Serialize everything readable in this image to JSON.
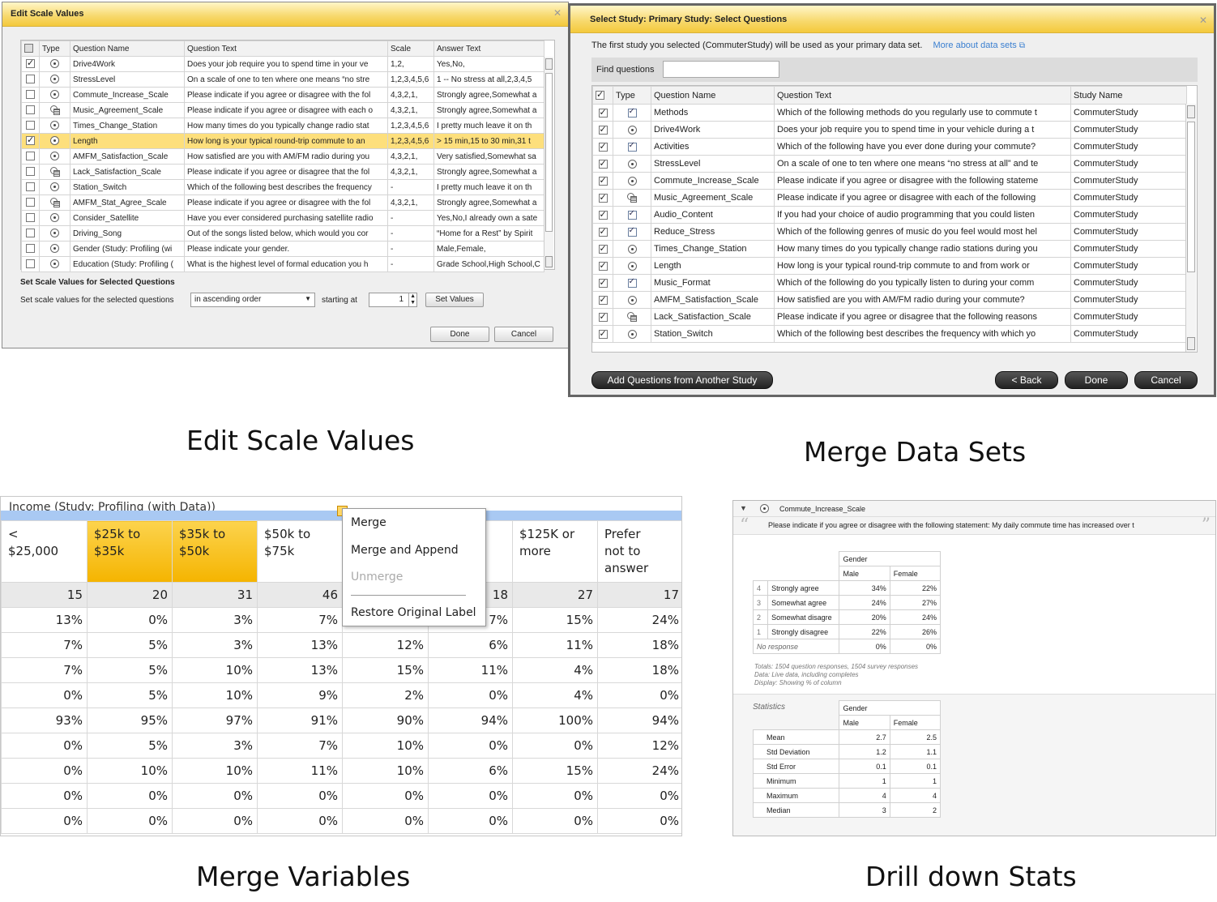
{
  "captions": {
    "edit_scale": "Edit Scale Values",
    "merge_data": "Merge Data Sets",
    "merge_vars": "Merge Variables",
    "drill_down": "Drill down Stats"
  },
  "edit_scale_dialog": {
    "title": "Edit Scale Values",
    "close": "✕",
    "columns": [
      "Type",
      "Question Name",
      "Question Text",
      "Scale",
      "Answer Text"
    ],
    "rows": [
      {
        "checked": true,
        "type": "radio",
        "name": "Drive4Work",
        "text": "Does your job require you to spend time in your ve",
        "scale": "1,2,",
        "answer": "Yes,No,"
      },
      {
        "checked": false,
        "type": "radio",
        "name": "StressLevel",
        "text": "On a scale of one to ten where one means “no stre",
        "scale": "1,2,3,4,5,6",
        "answer": "1 -- No stress at all,2,3,4,5"
      },
      {
        "checked": false,
        "type": "radio",
        "name": "Commute_Increase_Scale",
        "text": "Please indicate if you agree or disagree with the fol",
        "scale": "4,3,2,1,",
        "answer": "Strongly agree,Somewhat a"
      },
      {
        "checked": false,
        "type": "grid",
        "name": "Music_Agreement_Scale",
        "text": "Please indicate if you agree or disagree with each o",
        "scale": "4,3,2,1,",
        "answer": "Strongly agree,Somewhat a"
      },
      {
        "checked": false,
        "type": "radio",
        "name": "Times_Change_Station",
        "text": "How many times do you typically change radio stat",
        "scale": "1,2,3,4,5,6",
        "answer": "I pretty much leave it on th"
      },
      {
        "checked": true,
        "type": "radio",
        "name": "Length",
        "text": "How long is your typical round-trip commute to an",
        "scale": "1,2,3,4,5,6",
        "answer": "> 15 min,15 to 30 min,31 t",
        "selected": true
      },
      {
        "checked": false,
        "type": "radio",
        "name": "AMFM_Satisfaction_Scale",
        "text": "How satisfied are you with AM/FM radio during you",
        "scale": "4,3,2,1,",
        "answer": "Very satisfied,Somewhat sa"
      },
      {
        "checked": false,
        "type": "grid",
        "name": "Lack_Satisfaction_Scale",
        "text": "Please indicate if you agree or disagree that the fol",
        "scale": "4,3,2,1,",
        "answer": "Strongly agree,Somewhat a"
      },
      {
        "checked": false,
        "type": "radio",
        "name": "Station_Switch",
        "text": "Which of the following best describes the frequency",
        "scale": "-",
        "answer": "I pretty much leave it on th"
      },
      {
        "checked": false,
        "type": "grid",
        "name": "AMFM_Stat_Agree_Scale",
        "text": "Please indicate if you agree or disagree with the fol",
        "scale": "4,3,2,1,",
        "answer": "Strongly agree,Somewhat a"
      },
      {
        "checked": false,
        "type": "radio",
        "name": "Consider_Satellite",
        "text": "Have you ever considered purchasing satellite radio",
        "scale": "-",
        "answer": "Yes,No,I already own a sate"
      },
      {
        "checked": false,
        "type": "radio",
        "name": "Driving_Song",
        "text": "Out of the songs listed below, which would you cor",
        "scale": "-",
        "answer": "“Home for a Rest” by Spirit"
      },
      {
        "checked": false,
        "type": "radio",
        "name": "Gender (Study: Profiling (wi",
        "text": "Please indicate your gender.",
        "scale": "-",
        "answer": "Male,Female,"
      },
      {
        "checked": false,
        "type": "radio",
        "name": "Education (Study: Profiling (",
        "text": "What is the highest level of formal education you h",
        "scale": "-",
        "answer": "Grade School,High School,C"
      }
    ],
    "section_title": "Set Scale Values for Selected Questions",
    "set_label": "Set scale values for the selected questions",
    "order_value": "in ascending order",
    "starting_label": "starting at",
    "starting_value": "1",
    "set_button": "Set Values",
    "done": "Done",
    "cancel": "Cancel"
  },
  "select_study_dialog": {
    "title": "Select Study: Primary Study: Select Questions",
    "close": "✕",
    "intro": "The first study you selected  (CommuterStudy)  will be used as your primary data set.",
    "more_link": "More about data sets",
    "find_label": "Find questions",
    "find_value": "",
    "columns": [
      "Type",
      "Question Name",
      "Question Text",
      "Study Name"
    ],
    "rows": [
      {
        "type": "check",
        "name": "Methods",
        "text": "Which of the following methods do you regularly use to commute t",
        "study": "CommuterStudy"
      },
      {
        "type": "radio",
        "name": "Drive4Work",
        "text": "Does your job require you to spend time in your vehicle during a t",
        "study": "CommuterStudy"
      },
      {
        "type": "check",
        "name": "Activities",
        "text": "Which of the following have you ever done during your commute?",
        "study": "CommuterStudy"
      },
      {
        "type": "radio",
        "name": "StressLevel",
        "text": "On a scale of one to ten where one means “no stress at all” and te",
        "study": "CommuterStudy"
      },
      {
        "type": "radio",
        "name": "Commute_Increase_Scale",
        "text": "Please indicate if you agree or disagree with the following stateme",
        "study": "CommuterStudy"
      },
      {
        "type": "grid",
        "name": "Music_Agreement_Scale",
        "text": "Please indicate if you agree or disagree with each of the following",
        "study": "CommuterStudy"
      },
      {
        "type": "check",
        "name": "Audio_Content",
        "text": "If you had your choice of audio programming that you could listen",
        "study": "CommuterStudy"
      },
      {
        "type": "check",
        "name": "Reduce_Stress",
        "text": "Which of the following genres of music do you feel would most hel",
        "study": "CommuterStudy"
      },
      {
        "type": "radio",
        "name": "Times_Change_Station",
        "text": "How many times do you typically change radio stations during you",
        "study": "CommuterStudy"
      },
      {
        "type": "radio",
        "name": "Length",
        "text": "How long is your typical round-trip commute to and from work or",
        "study": "CommuterStudy"
      },
      {
        "type": "check",
        "name": "Music_Format",
        "text": "Which of the following do you typically listen to during your comm",
        "study": "CommuterStudy"
      },
      {
        "type": "radio",
        "name": "AMFM_Satisfaction_Scale",
        "text": "How satisfied are you with AM/FM radio during your commute?",
        "study": "CommuterStudy"
      },
      {
        "type": "grid",
        "name": "Lack_Satisfaction_Scale",
        "text": "Please indicate if you agree or disagree that the following reasons",
        "study": "CommuterStudy"
      },
      {
        "type": "radio",
        "name": "Station_Switch",
        "text": "Which of the following best describes the frequency with which yo",
        "study": "CommuterStudy"
      }
    ],
    "add_button": "Add Questions from Another Study",
    "back_button": "< Back",
    "done_button": "Done",
    "cancel_button": "Cancel"
  },
  "merge_variables": {
    "header_title": "Income (Study: Profiling (with Data))",
    "columns": [
      "<\n$25,000",
      "$25k to\n$35k",
      "$35k to\n$50k",
      "$50k to\n$75k",
      "",
      "",
      "$125K or\nmore",
      "Prefer\nnot to\nanswer"
    ],
    "highlighted": [
      1,
      2
    ],
    "totals": [
      "15",
      "20",
      "31",
      "46",
      "",
      "18",
      "27",
      "17"
    ],
    "rows": [
      [
        "13%",
        "0%",
        "3%",
        "7%",
        "",
        "7%",
        "15%",
        "24%"
      ],
      [
        "7%",
        "5%",
        "3%",
        "13%",
        "12%",
        "6%",
        "11%",
        "18%"
      ],
      [
        "7%",
        "5%",
        "10%",
        "13%",
        "15%",
        "11%",
        "4%",
        "18%"
      ],
      [
        "0%",
        "5%",
        "10%",
        "9%",
        "2%",
        "0%",
        "4%",
        "0%"
      ],
      [
        "93%",
        "95%",
        "97%",
        "91%",
        "90%",
        "94%",
        "100%",
        "94%"
      ],
      [
        "0%",
        "5%",
        "3%",
        "7%",
        "10%",
        "0%",
        "0%",
        "12%"
      ],
      [
        "0%",
        "10%",
        "10%",
        "11%",
        "10%",
        "6%",
        "15%",
        "24%"
      ],
      [
        "0%",
        "0%",
        "0%",
        "0%",
        "0%",
        "0%",
        "0%",
        "0%"
      ],
      [
        "0%",
        "0%",
        "0%",
        "0%",
        "0%",
        "0%",
        "0%",
        "0%"
      ]
    ],
    "menu": {
      "merge": "Merge",
      "merge_append": "Merge and Append",
      "unmerge": "Unmerge",
      "restore": "Restore Original Label"
    }
  },
  "drill_down": {
    "question_name": "Commute_Increase_Scale",
    "question_text": "Please indicate if you agree or disagree with the following statement: My daily commute time has increased over t",
    "group": "Gender",
    "col_male": "Male",
    "col_female": "Female",
    "rows": [
      {
        "code": "4",
        "label": "Strongly agree",
        "male": "34%",
        "female": "22%"
      },
      {
        "code": "3",
        "label": "Somewhat agree",
        "male": "24%",
        "female": "27%"
      },
      {
        "code": "2",
        "label": "Somewhat disagre",
        "male": "20%",
        "female": "24%"
      },
      {
        "code": "1",
        "label": "Strongly disagree",
        "male": "22%",
        "female": "26%"
      }
    ],
    "no_response": {
      "label": "No response",
      "male": "0%",
      "female": "0%"
    },
    "notes": [
      "Totals: 1504 question responses, 1504 survey responses",
      "Data: Live data, including completes",
      "Display: Showing % of column"
    ],
    "stats_label": "Statistics",
    "stats": [
      {
        "label": "Mean",
        "male": "2.7",
        "female": "2.5"
      },
      {
        "label": "Std Deviation",
        "male": "1.2",
        "female": "1.1"
      },
      {
        "label": "Std Error",
        "male": "0.1",
        "female": "0.1"
      },
      {
        "label": "Minimum",
        "male": "1",
        "female": "1"
      },
      {
        "label": "Maximum",
        "male": "4",
        "female": "4"
      },
      {
        "label": "Median",
        "male": "3",
        "female": "2"
      }
    ]
  }
}
